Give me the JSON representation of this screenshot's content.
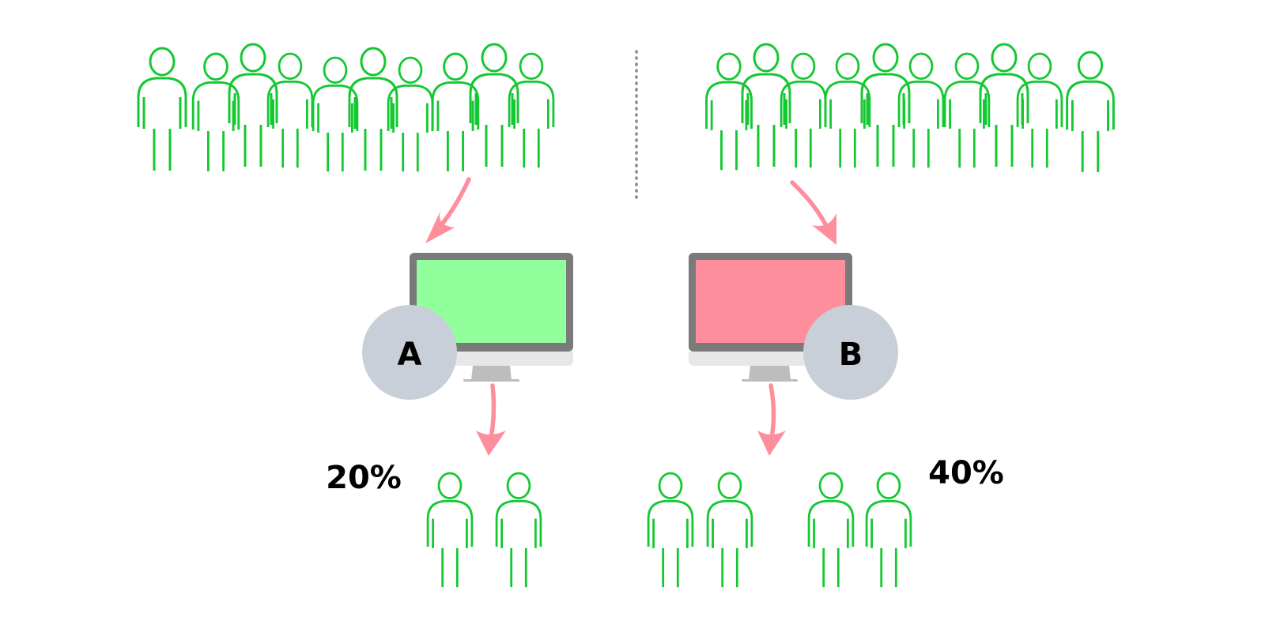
{
  "variant_a": {
    "letter": "A",
    "percent": "20%",
    "screen_color": "#90FF9C",
    "visitors_shown": 10,
    "converted_shown": 2
  },
  "variant_b": {
    "letter": "B",
    "percent": "40%",
    "screen_color": "#FF8E9C",
    "visitors_shown": 10,
    "converted_shown": 4
  },
  "colors": {
    "person": "#14C832",
    "arrow": "#FF8E9C",
    "monitor_frame": "#7A7A7A",
    "monitor_chin": "#E7E7E7",
    "monitor_stand": "#BDBDBD",
    "badge": "#C8CFD8",
    "divider": "#8A8A8A",
    "text": "#000000"
  },
  "icons": {
    "person": "person-outline-icon",
    "monitor": "monitor-icon",
    "arrow": "curved-arrow-icon"
  }
}
